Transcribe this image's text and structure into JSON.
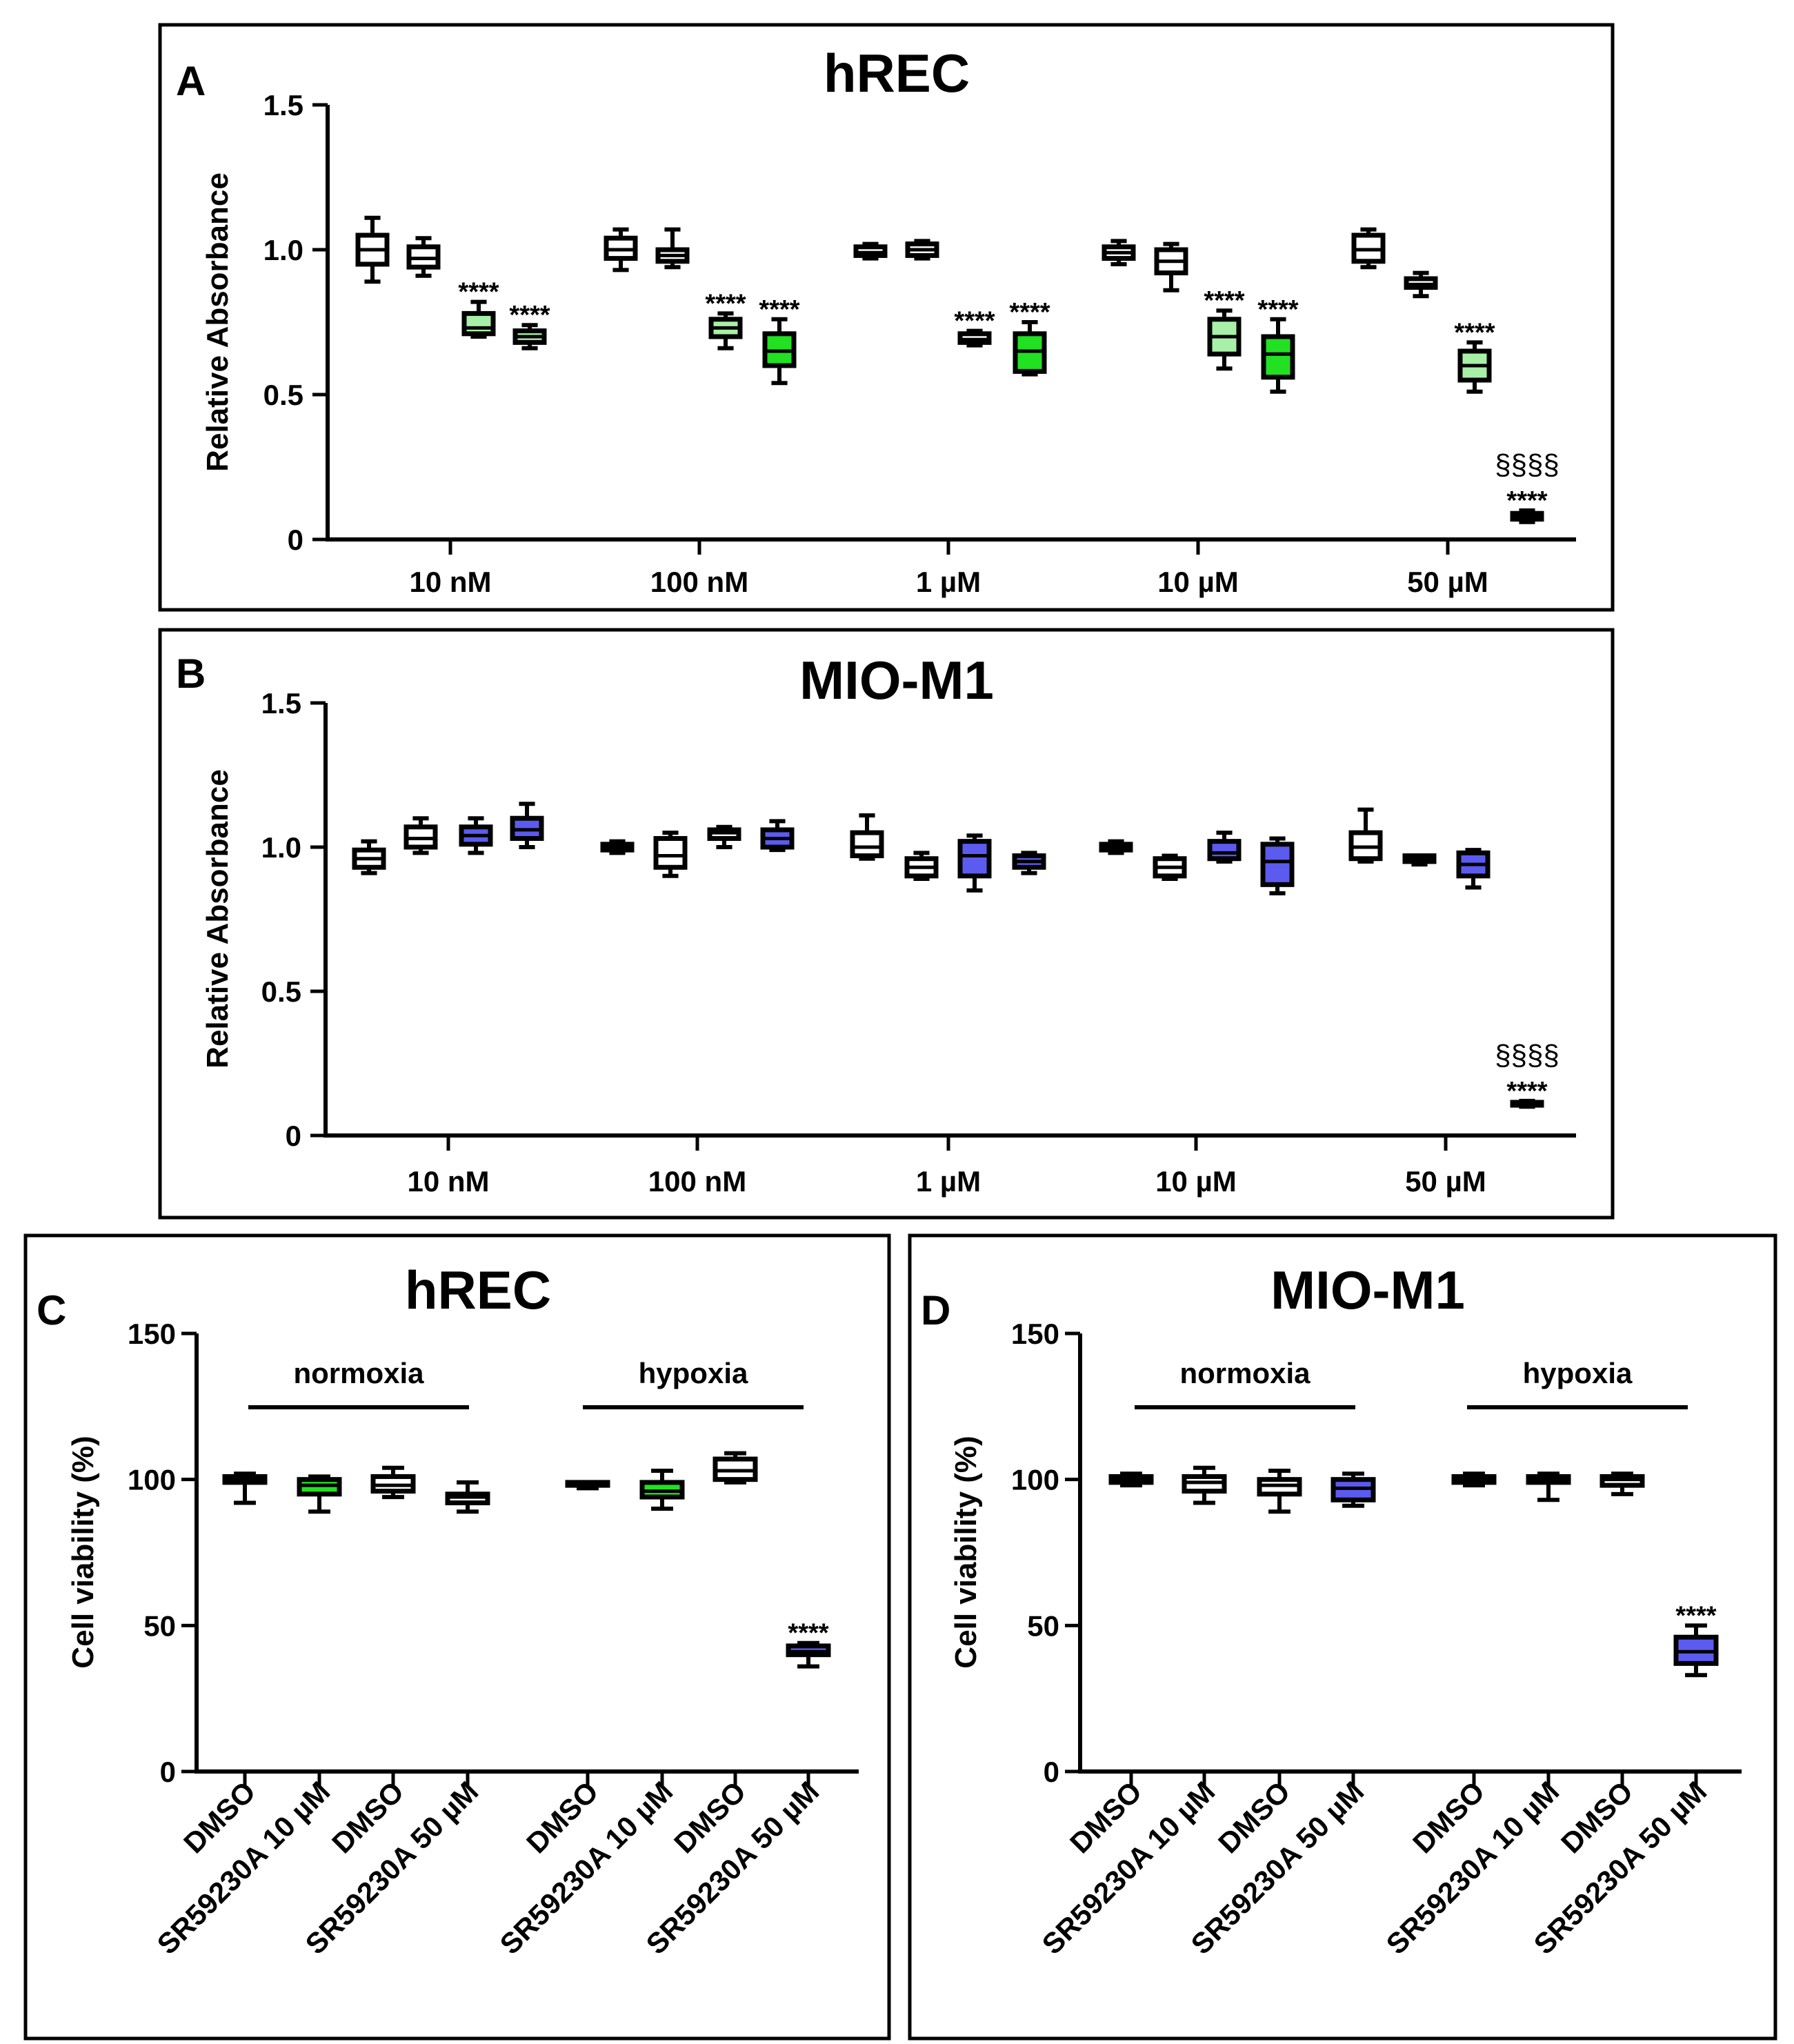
{
  "colors": {
    "white": "#ffffff",
    "light_green": "#a8f0a8",
    "green": "#22e022",
    "blue": "#5b5bf0",
    "black": "#000000"
  },
  "chart_data": [
    {
      "panel": "A",
      "title": "hREC",
      "type": "box",
      "ylabel": "Relative Absorbance",
      "ylim": [
        0,
        1.5
      ],
      "yticks": [
        0,
        0.5,
        1.0,
        1.5
      ],
      "ytick_labels": [
        "0",
        "0.5",
        "1.0",
        "1.5"
      ],
      "categories": [
        "10 nM",
        "100 nM",
        "1 µM",
        "10 µM",
        "50 µM"
      ],
      "boxes": [
        {
          "group": 0,
          "color": "white",
          "min": 0.89,
          "q1": 0.95,
          "median": 1.0,
          "q3": 1.05,
          "max": 1.11,
          "sig": ""
        },
        {
          "group": 0,
          "color": "white",
          "min": 0.91,
          "q1": 0.94,
          "median": 0.97,
          "q3": 1.01,
          "max": 1.04,
          "sig": ""
        },
        {
          "group": 0,
          "color": "light_green",
          "min": 0.7,
          "q1": 0.71,
          "median": 0.73,
          "q3": 0.78,
          "max": 0.82,
          "sig": "****"
        },
        {
          "group": 0,
          "color": "light_green",
          "min": 0.66,
          "q1": 0.68,
          "median": 0.7,
          "q3": 0.72,
          "max": 0.74,
          "sig": "****"
        },
        {
          "group": 1,
          "color": "white",
          "min": 0.93,
          "q1": 0.97,
          "median": 1.0,
          "q3": 1.04,
          "max": 1.07,
          "sig": ""
        },
        {
          "group": 1,
          "color": "white",
          "min": 0.94,
          "q1": 0.96,
          "median": 0.98,
          "q3": 1.0,
          "max": 1.07,
          "sig": ""
        },
        {
          "group": 1,
          "color": "light_green",
          "min": 0.66,
          "q1": 0.7,
          "median": 0.73,
          "q3": 0.76,
          "max": 0.78,
          "sig": "****"
        },
        {
          "group": 1,
          "color": "green",
          "min": 0.54,
          "q1": 0.6,
          "median": 0.65,
          "q3": 0.71,
          "max": 0.76,
          "sig": "****"
        },
        {
          "group": 2,
          "color": "white",
          "min": 0.97,
          "q1": 0.98,
          "median": 0.99,
          "q3": 1.01,
          "max": 1.02,
          "sig": ""
        },
        {
          "group": 2,
          "color": "white",
          "min": 0.97,
          "q1": 0.98,
          "median": 1.0,
          "q3": 1.02,
          "max": 1.03,
          "sig": ""
        },
        {
          "group": 2,
          "color": "white",
          "min": 0.67,
          "q1": 0.68,
          "median": 0.69,
          "q3": 0.71,
          "max": 0.72,
          "sig": "****"
        },
        {
          "group": 2,
          "color": "green",
          "min": 0.57,
          "q1": 0.58,
          "median": 0.65,
          "q3": 0.71,
          "max": 0.75,
          "sig": "****"
        },
        {
          "group": 3,
          "color": "white",
          "min": 0.95,
          "q1": 0.97,
          "median": 0.99,
          "q3": 1.01,
          "max": 1.03,
          "sig": ""
        },
        {
          "group": 3,
          "color": "white",
          "min": 0.86,
          "q1": 0.92,
          "median": 0.96,
          "q3": 1.0,
          "max": 1.02,
          "sig": ""
        },
        {
          "group": 3,
          "color": "light_green",
          "min": 0.59,
          "q1": 0.64,
          "median": 0.7,
          "q3": 0.76,
          "max": 0.79,
          "sig": "****"
        },
        {
          "group": 3,
          "color": "green",
          "min": 0.51,
          "q1": 0.56,
          "median": 0.64,
          "q3": 0.7,
          "max": 0.76,
          "sig": "****"
        },
        {
          "group": 4,
          "color": "white",
          "min": 0.94,
          "q1": 0.96,
          "median": 1.0,
          "q3": 1.05,
          "max": 1.07,
          "sig": ""
        },
        {
          "group": 4,
          "color": "white",
          "min": 0.84,
          "q1": 0.87,
          "median": 0.88,
          "q3": 0.9,
          "max": 0.92,
          "sig": ""
        },
        {
          "group": 4,
          "color": "light_green",
          "min": 0.51,
          "q1": 0.55,
          "median": 0.6,
          "q3": 0.65,
          "max": 0.68,
          "sig": "****"
        },
        {
          "group": 4,
          "color": "white",
          "min": 0.06,
          "q1": 0.07,
          "median": 0.08,
          "q3": 0.09,
          "max": 0.1,
          "sig": "****",
          "sig2": "§§§§"
        }
      ]
    },
    {
      "panel": "B",
      "title": "MIO-M1",
      "type": "box",
      "ylabel": "Relative Absorbance",
      "ylim": [
        0,
        1.5
      ],
      "yticks": [
        0,
        0.5,
        1.0,
        1.5
      ],
      "ytick_labels": [
        "0",
        "0.5",
        "1.0",
        "1.5"
      ],
      "categories": [
        "10 nM",
        "100 nM",
        "1 µM",
        "10 µM",
        "50 µM"
      ],
      "boxes": [
        {
          "group": 0,
          "color": "white",
          "min": 0.91,
          "q1": 0.93,
          "median": 0.96,
          "q3": 0.99,
          "max": 1.02,
          "sig": ""
        },
        {
          "group": 0,
          "color": "white",
          "min": 0.98,
          "q1": 1.0,
          "median": 1.03,
          "q3": 1.07,
          "max": 1.1,
          "sig": ""
        },
        {
          "group": 0,
          "color": "blue",
          "min": 0.98,
          "q1": 1.01,
          "median": 1.04,
          "q3": 1.07,
          "max": 1.1,
          "sig": ""
        },
        {
          "group": 0,
          "color": "blue",
          "min": 1.0,
          "q1": 1.03,
          "median": 1.06,
          "q3": 1.1,
          "max": 1.15,
          "sig": ""
        },
        {
          "group": 1,
          "color": "white",
          "min": 0.98,
          "q1": 0.99,
          "median": 1.0,
          "q3": 1.01,
          "max": 1.02,
          "sig": ""
        },
        {
          "group": 1,
          "color": "white",
          "min": 0.9,
          "q1": 0.93,
          "median": 0.97,
          "q3": 1.03,
          "max": 1.05,
          "sig": ""
        },
        {
          "group": 1,
          "color": "white",
          "min": 1.0,
          "q1": 1.03,
          "median": 1.05,
          "q3": 1.06,
          "max": 1.07,
          "sig": ""
        },
        {
          "group": 1,
          "color": "blue",
          "min": 0.99,
          "q1": 1.0,
          "median": 1.03,
          "q3": 1.06,
          "max": 1.09,
          "sig": ""
        },
        {
          "group": 2,
          "color": "white",
          "min": 0.96,
          "q1": 0.97,
          "median": 1.0,
          "q3": 1.05,
          "max": 1.11,
          "sig": ""
        },
        {
          "group": 2,
          "color": "white",
          "min": 0.89,
          "q1": 0.9,
          "median": 0.93,
          "q3": 0.96,
          "max": 0.98,
          "sig": ""
        },
        {
          "group": 2,
          "color": "blue",
          "min": 0.85,
          "q1": 0.9,
          "median": 0.97,
          "q3": 1.02,
          "max": 1.04,
          "sig": ""
        },
        {
          "group": 2,
          "color": "blue",
          "min": 0.91,
          "q1": 0.93,
          "median": 0.95,
          "q3": 0.97,
          "max": 0.98,
          "sig": ""
        },
        {
          "group": 3,
          "color": "white",
          "min": 0.98,
          "q1": 0.99,
          "median": 1.0,
          "q3": 1.01,
          "max": 1.02,
          "sig": ""
        },
        {
          "group": 3,
          "color": "white",
          "min": 0.89,
          "q1": 0.9,
          "median": 0.93,
          "q3": 0.96,
          "max": 0.97,
          "sig": ""
        },
        {
          "group": 3,
          "color": "blue",
          "min": 0.95,
          "q1": 0.96,
          "median": 0.98,
          "q3": 1.02,
          "max": 1.05,
          "sig": ""
        },
        {
          "group": 3,
          "color": "blue",
          "min": 0.84,
          "q1": 0.87,
          "median": 0.95,
          "q3": 1.01,
          "max": 1.03,
          "sig": ""
        },
        {
          "group": 4,
          "color": "white",
          "min": 0.95,
          "q1": 0.96,
          "median": 1.0,
          "q3": 1.05,
          "max": 1.13,
          "sig": ""
        },
        {
          "group": 4,
          "color": "white",
          "min": 0.94,
          "q1": 0.95,
          "median": 0.96,
          "q3": 0.97,
          "max": 0.97,
          "sig": ""
        },
        {
          "group": 4,
          "color": "blue",
          "min": 0.86,
          "q1": 0.9,
          "median": 0.94,
          "q3": 0.98,
          "max": 0.99,
          "sig": ""
        },
        {
          "group": 4,
          "color": "white",
          "min": 0.1,
          "q1": 0.105,
          "median": 0.11,
          "q3": 0.115,
          "max": 0.12,
          "sig": "****",
          "sig2": "§§§§"
        }
      ]
    },
    {
      "panel": "C",
      "title": "hREC",
      "type": "box",
      "ylabel": "Cell viability (%)",
      "ylim": [
        0,
        150
      ],
      "yticks": [
        0,
        50,
        100,
        150
      ],
      "ytick_labels": [
        "0",
        "50",
        "100",
        "150"
      ],
      "group_labels": [
        "normoxia",
        "hypoxia"
      ],
      "categories": [
        "DMSO",
        "SR59230A 10 µM",
        "DMSO",
        "SR59230A 50 µM",
        "DMSO",
        "SR59230A 10 µM",
        "DMSO",
        "SR59230A 50 µM"
      ],
      "boxes": [
        {
          "color": "white",
          "min": 92,
          "q1": 99,
          "median": 100,
          "q3": 101,
          "max": 102,
          "sig": ""
        },
        {
          "color": "green",
          "min": 89,
          "q1": 95,
          "median": 98,
          "q3": 100,
          "max": 101,
          "sig": ""
        },
        {
          "color": "white",
          "min": 94,
          "q1": 96,
          "median": 98,
          "q3": 101,
          "max": 104,
          "sig": ""
        },
        {
          "color": "white",
          "min": 89,
          "q1": 92,
          "median": 94,
          "q3": 95,
          "max": 99,
          "sig": ""
        },
        {
          "color": "white",
          "min": 97,
          "q1": 98,
          "median": 98,
          "q3": 99,
          "max": 99,
          "sig": ""
        },
        {
          "color": "green",
          "min": 90,
          "q1": 94,
          "median": 96,
          "q3": 99,
          "max": 103,
          "sig": ""
        },
        {
          "color": "white",
          "min": 99,
          "q1": 100,
          "median": 103,
          "q3": 107,
          "max": 109,
          "sig": ""
        },
        {
          "color": "blue",
          "min": 36,
          "q1": 40,
          "median": 41,
          "q3": 43,
          "max": 44,
          "sig": "****"
        }
      ]
    },
    {
      "panel": "D",
      "title": "MIO-M1",
      "type": "box",
      "ylabel": "Cell viability (%)",
      "ylim": [
        0,
        150
      ],
      "yticks": [
        0,
        50,
        100,
        150
      ],
      "ytick_labels": [
        "0",
        "50",
        "100",
        "150"
      ],
      "group_labels": [
        "normoxia",
        "hypoxia"
      ],
      "categories": [
        "DMSO",
        "SR59230A 10 µM",
        "DMSO",
        "SR59230A 50 µM",
        "DMSO",
        "SR59230A 10 µM",
        "DMSO",
        "SR59230A 50 µM"
      ],
      "boxes": [
        {
          "color": "white",
          "min": 98,
          "q1": 99,
          "median": 100,
          "q3": 101,
          "max": 102,
          "sig": ""
        },
        {
          "color": "white",
          "min": 92,
          "q1": 96,
          "median": 99,
          "q3": 101,
          "max": 104,
          "sig": ""
        },
        {
          "color": "white",
          "min": 89,
          "q1": 95,
          "median": 98,
          "q3": 100,
          "max": 103,
          "sig": ""
        },
        {
          "color": "blue",
          "min": 91,
          "q1": 93,
          "median": 97,
          "q3": 100,
          "max": 102,
          "sig": ""
        },
        {
          "color": "white",
          "min": 98,
          "q1": 99,
          "median": 100,
          "q3": 101,
          "max": 102,
          "sig": ""
        },
        {
          "color": "white",
          "min": 93,
          "q1": 99,
          "median": 100,
          "q3": 101,
          "max": 102,
          "sig": ""
        },
        {
          "color": "white",
          "min": 95,
          "q1": 98,
          "median": 100,
          "q3": 101,
          "max": 102,
          "sig": ""
        },
        {
          "color": "blue",
          "min": 33,
          "q1": 37,
          "median": 41,
          "q3": 46,
          "max": 50,
          "sig": "****"
        }
      ]
    }
  ]
}
